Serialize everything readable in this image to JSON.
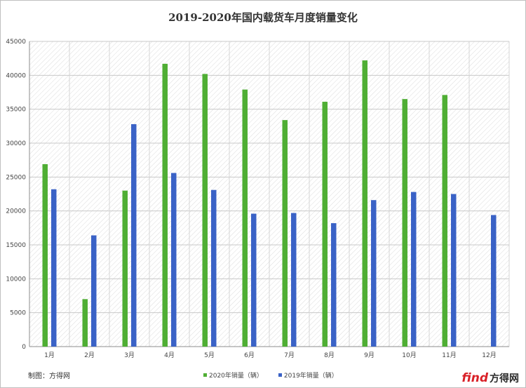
{
  "chart_data": {
    "type": "bar",
    "title": "2019-2020年国内载货车月度销量变化",
    "categories": [
      "1月",
      "2月",
      "3月",
      "4月",
      "5月",
      "6月",
      "7月",
      "8月",
      "9月",
      "10月",
      "11月",
      "12月"
    ],
    "series": [
      {
        "name": "2020年销量（辆）",
        "color": "#4fae34",
        "values": [
          26900,
          7000,
          23000,
          41700,
          40200,
          37900,
          33400,
          36100,
          42200,
          36500,
          37100,
          null
        ]
      },
      {
        "name": "2019年销量（辆）",
        "color": "#3a62c6",
        "values": [
          23200,
          16400,
          32800,
          25600,
          23100,
          19600,
          19700,
          18200,
          21600,
          22800,
          22500,
          19400
        ]
      }
    ],
    "ylim": [
      0,
      45000
    ],
    "yticks": [
      "0",
      "5000",
      "10000",
      "15000",
      "20000",
      "25000",
      "30000",
      "35000",
      "40000",
      "45000"
    ],
    "grid": true,
    "legend_position": "bottom"
  },
  "footer": {
    "source": "制图：方得网"
  },
  "watermark": {
    "brand": "find",
    "brand_cn": "方得网"
  }
}
